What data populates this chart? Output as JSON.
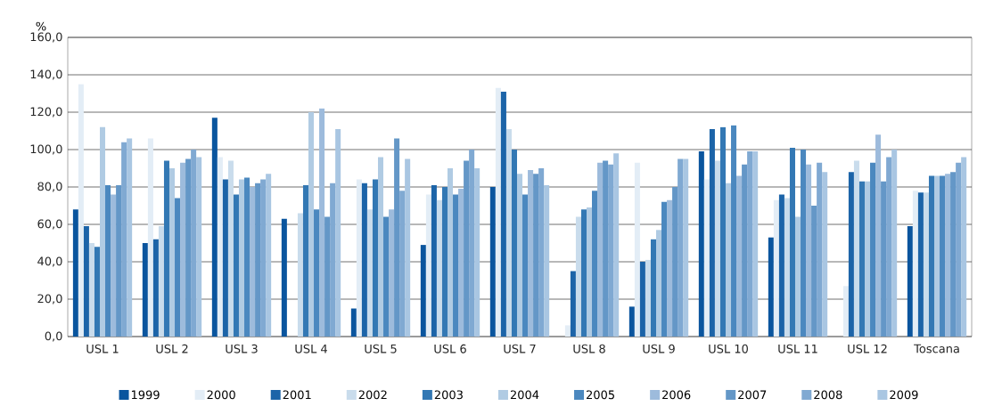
{
  "chart_data": {
    "type": "bar",
    "ylabel": "%",
    "categories": [
      "USL 1",
      "USL 2",
      "USL 3",
      "USL 4",
      "USL 5",
      "USL 6",
      "USL 7",
      "USL 8",
      "USL 9",
      "USL 10",
      "USL 11",
      "USL 12",
      "Toscana"
    ],
    "series": [
      {
        "name": "1999",
        "color": "#0a559e",
        "values": [
          68,
          50,
          117,
          63,
          15,
          49,
          80,
          null,
          16,
          99,
          53,
          null,
          59
        ]
      },
      {
        "name": "2000",
        "color": "#e3edf6",
        "values": [
          135,
          106,
          96,
          null,
          84,
          76,
          133,
          6,
          93,
          84,
          73,
          27,
          78
        ]
      },
      {
        "name": "2001",
        "color": "#1c64a8",
        "values": [
          59,
          52,
          84,
          null,
          82,
          81,
          131,
          35,
          40,
          111,
          76,
          88,
          77
        ]
      },
      {
        "name": "2002",
        "color": "#c9dcec",
        "values": [
          50,
          59,
          94,
          66,
          68,
          73,
          111,
          64,
          41,
          94,
          74,
          94,
          77
        ]
      },
      {
        "name": "2003",
        "color": "#3378b4",
        "values": [
          48,
          94,
          76,
          81,
          84,
          80,
          100,
          68,
          52,
          112,
          101,
          83,
          86
        ]
      },
      {
        "name": "2004",
        "color": "#b0cbe3",
        "values": [
          112,
          90,
          84,
          120,
          96,
          90,
          87,
          69,
          57,
          82,
          64,
          83,
          86
        ]
      },
      {
        "name": "2005",
        "color": "#4b88bf",
        "values": [
          81,
          74,
          85,
          68,
          64,
          76,
          76,
          78,
          72,
          113,
          100,
          93,
          86
        ]
      },
      {
        "name": "2006",
        "color": "#9dbbdc",
        "values": [
          76,
          93,
          80,
          122,
          68,
          79,
          89,
          93,
          73,
          86,
          92,
          108,
          87
        ]
      },
      {
        "name": "2007",
        "color": "#6497c7",
        "values": [
          81,
          95,
          82,
          64,
          106,
          94,
          87,
          94,
          80,
          92,
          70,
          83,
          88
        ]
      },
      {
        "name": "2008",
        "color": "#80a9d2",
        "values": [
          104,
          100,
          84,
          82,
          78,
          100,
          90,
          92,
          95,
          99,
          93,
          96,
          93
        ]
      },
      {
        "name": "2009",
        "color": "#a9c6e2",
        "values": [
          106,
          96,
          87,
          111,
          95,
          90,
          81,
          98,
          95,
          99,
          88,
          100,
          96
        ]
      }
    ],
    "ylim": [
      0,
      160
    ],
    "yticks": [
      {
        "value": 0,
        "label": "0,0"
      },
      {
        "value": 20,
        "label": "20,0"
      },
      {
        "value": 40,
        "label": "40,0"
      },
      {
        "value": 60,
        "label": "60,0"
      },
      {
        "value": 80,
        "label": "80,0"
      },
      {
        "value": 100,
        "label": "100,0"
      },
      {
        "value": 120,
        "label": "120,0"
      },
      {
        "value": 140,
        "label": "140,0"
      },
      {
        "value": 160,
        "label": "160,0"
      }
    ],
    "grid": "y",
    "legend": "bottom"
  }
}
